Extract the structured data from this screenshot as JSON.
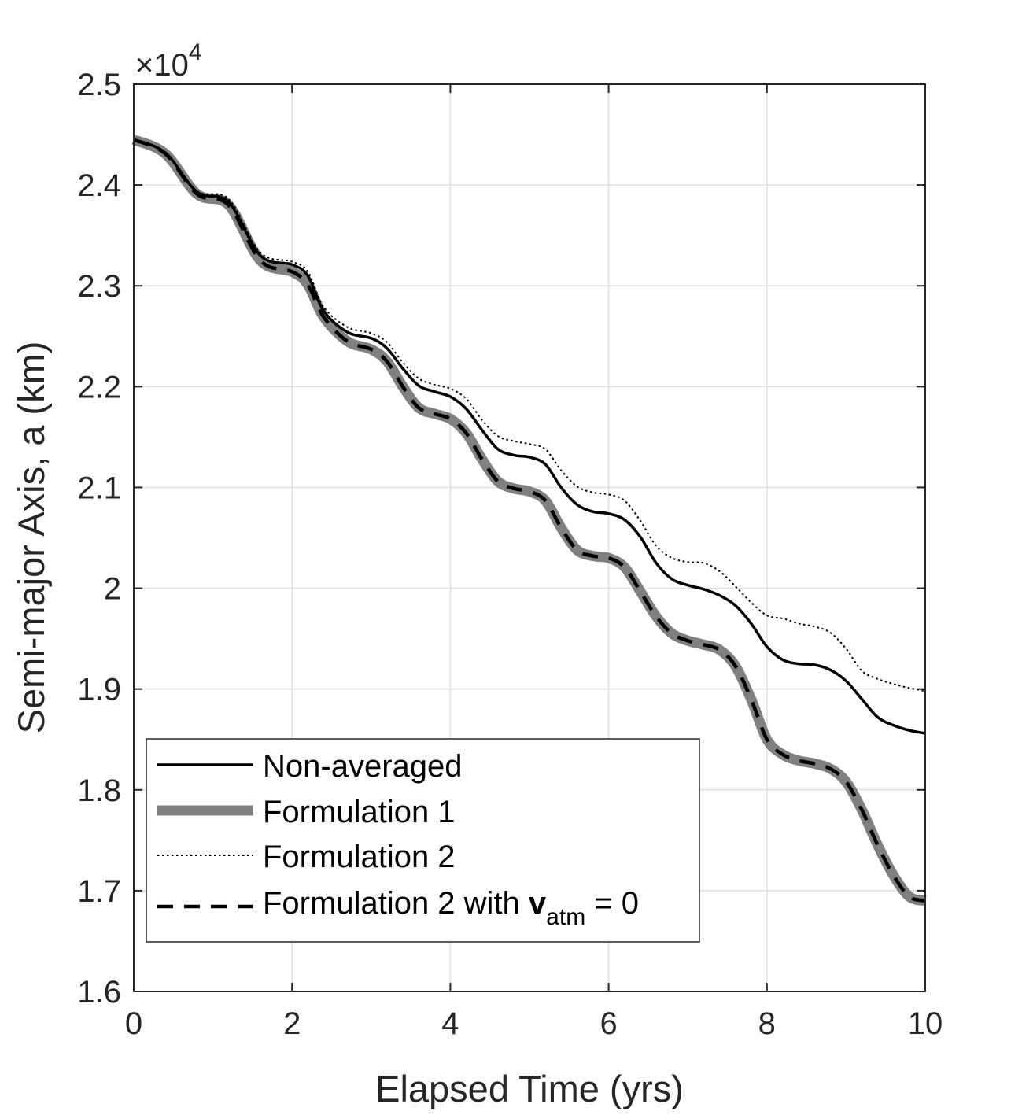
{
  "chart_data": {
    "type": "line",
    "xlabel": "Elapsed Time (yrs)",
    "ylabel": "Semi-major Axis, a (km)",
    "xlim": [
      0,
      10
    ],
    "ylim": [
      16000,
      25000
    ],
    "xticks": [
      0,
      2,
      4,
      6,
      8,
      10
    ],
    "xtick_labels": [
      "0",
      "2",
      "4",
      "6",
      "8",
      "10"
    ],
    "yticks": [
      16000,
      17000,
      18000,
      19000,
      20000,
      21000,
      22000,
      23000,
      24000,
      25000
    ],
    "ytick_labels": [
      "1.6",
      "1.7",
      "1.8",
      "1.9",
      "2",
      "2.1",
      "2.2",
      "2.3",
      "2.4",
      "2.5"
    ],
    "exponent": {
      "base": "×10",
      "power": "4"
    },
    "grid": true,
    "legend_position": "bottom-left",
    "series": [
      {
        "name": "Non-averaged",
        "style": "solid",
        "color": "#000000",
        "x": [
          0,
          0.4,
          0.8,
          1.2,
          1.6,
          2.0,
          2.2,
          2.4,
          2.7,
          3.0,
          3.2,
          3.4,
          3.6,
          3.8,
          4.0,
          4.2,
          4.4,
          4.6,
          4.8,
          5.0,
          5.2,
          5.4,
          5.6,
          5.8,
          6.0,
          6.2,
          6.4,
          6.6,
          6.8,
          7.0,
          7.2,
          7.4,
          7.6,
          7.8,
          8.0,
          8.2,
          8.4,
          8.6,
          8.8,
          9.0,
          9.2,
          9.4,
          9.6,
          9.8,
          10.0
        ],
        "y": [
          24450,
          24320,
          23930,
          23830,
          23300,
          23210,
          23100,
          22750,
          22540,
          22480,
          22380,
          22180,
          22010,
          21950,
          21900,
          21780,
          21570,
          21380,
          21320,
          21300,
          21230,
          21000,
          20830,
          20760,
          20740,
          20680,
          20510,
          20250,
          20090,
          20030,
          19990,
          19930,
          19830,
          19650,
          19420,
          19290,
          19250,
          19240,
          19190,
          19080,
          18900,
          18720,
          18640,
          18590,
          18560
        ]
      },
      {
        "name": "Formulation 1",
        "style": "thick",
        "color": "#808080",
        "x": [
          0,
          0.4,
          0.8,
          1.2,
          1.6,
          2.0,
          2.2,
          2.4,
          2.7,
          3.0,
          3.2,
          3.4,
          3.6,
          3.8,
          4.0,
          4.2,
          4.4,
          4.6,
          4.8,
          5.0,
          5.2,
          5.4,
          5.6,
          5.8,
          6.0,
          6.2,
          6.4,
          6.6,
          6.8,
          7.0,
          7.2,
          7.4,
          7.6,
          7.8,
          8.0,
          8.2,
          8.4,
          8.6,
          8.8,
          9.0,
          9.2,
          9.4,
          9.6,
          9.8,
          10.0
        ],
        "y": [
          24450,
          24310,
          23910,
          23800,
          23250,
          23140,
          23010,
          22690,
          22450,
          22370,
          22250,
          22000,
          21790,
          21730,
          21680,
          21540,
          21280,
          21060,
          20990,
          20960,
          20870,
          20600,
          20380,
          20320,
          20300,
          20210,
          19970,
          19720,
          19550,
          19480,
          19440,
          19390,
          19230,
          18900,
          18500,
          18350,
          18290,
          18260,
          18210,
          18080,
          17800,
          17450,
          17150,
          16940,
          16900
        ]
      },
      {
        "name": "Formulation 2",
        "style": "dotted",
        "color": "#000000",
        "x": [
          0,
          0.4,
          0.8,
          1.2,
          1.6,
          2.0,
          2.2,
          2.4,
          2.7,
          3.0,
          3.2,
          3.4,
          3.6,
          3.8,
          4.0,
          4.2,
          4.4,
          4.6,
          4.8,
          5.0,
          5.2,
          5.4,
          5.6,
          5.8,
          6.0,
          6.2,
          6.4,
          6.6,
          6.8,
          7.0,
          7.2,
          7.4,
          7.6,
          7.8,
          8.0,
          8.2,
          8.4,
          8.6,
          8.8,
          9.0,
          9.2,
          9.4,
          9.6,
          9.8,
          10.0
        ],
        "y": [
          24450,
          24320,
          23940,
          23860,
          23330,
          23240,
          23140,
          22790,
          22590,
          22530,
          22440,
          22240,
          22080,
          22020,
          21980,
          21880,
          21670,
          21510,
          21460,
          21430,
          21380,
          21170,
          21010,
          20950,
          20930,
          20870,
          20670,
          20420,
          20300,
          20260,
          20250,
          20170,
          20020,
          19860,
          19730,
          19700,
          19650,
          19620,
          19560,
          19400,
          19180,
          19100,
          19050,
          19010,
          18980
        ]
      },
      {
        "name": "Formulation 2 with v_atm = 0",
        "style": "dashed",
        "color": "#000000",
        "x": [
          0,
          0.4,
          0.8,
          1.2,
          1.6,
          2.0,
          2.2,
          2.4,
          2.7,
          3.0,
          3.2,
          3.4,
          3.6,
          3.8,
          4.0,
          4.2,
          4.4,
          4.6,
          4.8,
          5.0,
          5.2,
          5.4,
          5.6,
          5.8,
          6.0,
          6.2,
          6.4,
          6.6,
          6.8,
          7.0,
          7.2,
          7.4,
          7.6,
          7.8,
          8.0,
          8.2,
          8.4,
          8.6,
          8.8,
          9.0,
          9.2,
          9.4,
          9.6,
          9.8,
          10.0
        ],
        "y": [
          24450,
          24310,
          23910,
          23800,
          23250,
          23140,
          23010,
          22690,
          22450,
          22370,
          22250,
          22000,
          21790,
          21730,
          21680,
          21540,
          21280,
          21060,
          20990,
          20960,
          20870,
          20600,
          20380,
          20320,
          20300,
          20210,
          19970,
          19720,
          19550,
          19480,
          19440,
          19390,
          19230,
          18900,
          18500,
          18350,
          18290,
          18260,
          18210,
          18080,
          17800,
          17450,
          17150,
          16940,
          16900
        ]
      }
    ],
    "legend_labels": {
      "l1": "Non-averaged",
      "l2": "Formulation 1",
      "l3": "Formulation 2",
      "l4_prefix": "Formulation 2 with ",
      "l4_bold": "v",
      "l4_sub": "atm",
      "l4_suffix": " = 0"
    }
  }
}
